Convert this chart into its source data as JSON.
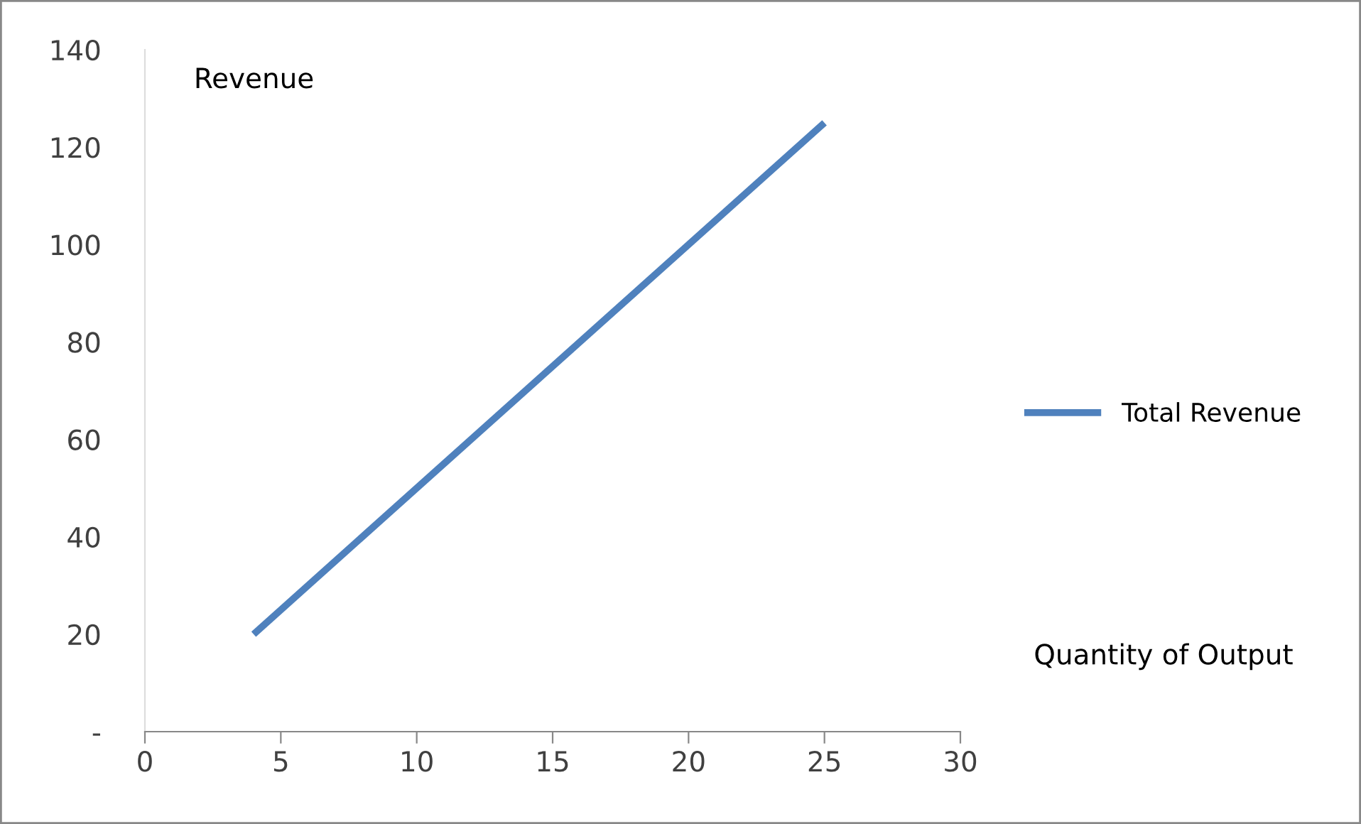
{
  "chart_data": {
    "type": "line",
    "xlabel": "Quantity of Output",
    "ylabel": "Revenue",
    "x": [
      4,
      25
    ],
    "series": [
      {
        "name": "Total Revenue",
        "color": "#4f81bd",
        "values": [
          20,
          125
        ]
      }
    ],
    "xlim": [
      0,
      30
    ],
    "xticks": [
      0,
      5,
      10,
      15,
      20,
      25,
      30
    ],
    "ylim": [
      0,
      140
    ],
    "yticks": [
      {
        "value": 0,
        "label": "-"
      },
      20,
      40,
      60,
      80,
      100,
      120,
      140
    ],
    "grid": false,
    "legend": "right",
    "marker": "none",
    "line_style": "solid"
  }
}
